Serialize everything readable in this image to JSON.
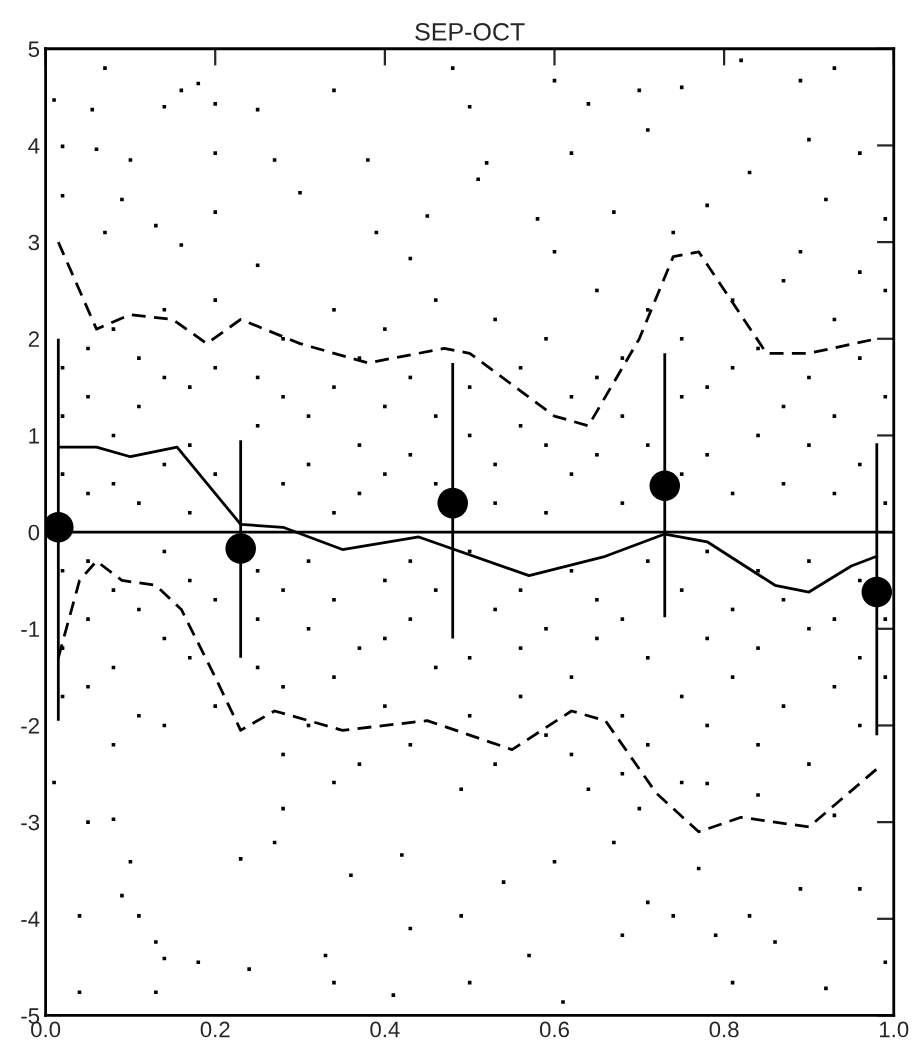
{
  "chart_data": {
    "type": "scatter",
    "title": "SEP-OCT",
    "xlim": [
      0,
      1
    ],
    "ylim": [
      -5,
      5
    ],
    "xticks": [
      {
        "value": 0,
        "label": "0.0"
      },
      {
        "value": 0.2,
        "label": "0.2"
      },
      {
        "value": 0.4,
        "label": "0.4"
      },
      {
        "value": 0.6,
        "label": "0.6"
      },
      {
        "value": 0.8,
        "label": "0.8"
      },
      {
        "value": 1,
        "label": "1.0"
      }
    ],
    "yticks": [
      -5,
      -4,
      -3,
      -2,
      -1,
      0,
      1,
      2,
      3,
      4,
      5
    ],
    "grid": false,
    "legend": false,
    "ref_lines": [
      {
        "axis": "y",
        "value": 0,
        "color": "#000000",
        "line_style": "solid"
      }
    ],
    "series": [
      {
        "type": "scatter",
        "marker": "square",
        "color": "#000000",
        "x": [
          0.01,
          0.055,
          0.07,
          0.14,
          0.16,
          0.18,
          0.2,
          0.25,
          0.34,
          0.48,
          0.5,
          0.6,
          0.64,
          0.7,
          0.75,
          0.82,
          0.89,
          0.93,
          0.9,
          0.02,
          0.06,
          0.1,
          0.2,
          0.27,
          0.38,
          0.52,
          0.62,
          0.71,
          0.83,
          0.96,
          0.02,
          0.09,
          0.13,
          0.2,
          0.3,
          0.45,
          0.51,
          0.58,
          0.67,
          0.78,
          0.92,
          0.99,
          0.07,
          0.16,
          0.25,
          0.39,
          0.43,
          0.6,
          0.74,
          0.89,
          0.96,
          0.02,
          0.02,
          0.02,
          0.02,
          0.02,
          0.02,
          0.05,
          0.05,
          0.05,
          0.05,
          0.05,
          0.05,
          0.08,
          0.08,
          0.08,
          0.08,
          0.08,
          0.08,
          0.11,
          0.11,
          0.11,
          0.11,
          0.11,
          0.14,
          0.14,
          0.14,
          0.14,
          0.14,
          0.14,
          0.17,
          0.17,
          0.17,
          0.17,
          0.17,
          0.2,
          0.2,
          0.2,
          0.2,
          0.2,
          0.25,
          0.25,
          0.25,
          0.25,
          0.25,
          0.28,
          0.28,
          0.28,
          0.28,
          0.28,
          0.28,
          0.31,
          0.31,
          0.31,
          0.31,
          0.31,
          0.34,
          0.34,
          0.34,
          0.34,
          0.34,
          0.37,
          0.37,
          0.37,
          0.37,
          0.37,
          0.4,
          0.4,
          0.4,
          0.4,
          0.4,
          0.4,
          0.43,
          0.43,
          0.43,
          0.43,
          0.43,
          0.46,
          0.46,
          0.46,
          0.46,
          0.46,
          0.5,
          0.5,
          0.5,
          0.5,
          0.5,
          0.53,
          0.53,
          0.53,
          0.53,
          0.53,
          0.56,
          0.56,
          0.56,
          0.56,
          0.56,
          0.59,
          0.59,
          0.59,
          0.59,
          0.59,
          0.62,
          0.62,
          0.62,
          0.62,
          0.62,
          0.65,
          0.65,
          0.65,
          0.65,
          0.65,
          0.68,
          0.68,
          0.68,
          0.68,
          0.68,
          0.68,
          0.71,
          0.71,
          0.71,
          0.71,
          0.71,
          0.75,
          0.75,
          0.75,
          0.75,
          0.75,
          0.78,
          0.78,
          0.78,
          0.78,
          0.78,
          0.78,
          0.81,
          0.81,
          0.81,
          0.81,
          0.81,
          0.84,
          0.84,
          0.84,
          0.84,
          0.84,
          0.87,
          0.87,
          0.87,
          0.87,
          0.87,
          0.9,
          0.9,
          0.9,
          0.9,
          0.9,
          0.93,
          0.93,
          0.93,
          0.93,
          0.93,
          0.96,
          0.96,
          0.96,
          0.96,
          0.96,
          0.99,
          0.99,
          0.99,
          0.99,
          0.99,
          0.01,
          0.05,
          0.08,
          0.1,
          0.09,
          0.04,
          0.11,
          0.13,
          0.14,
          0.18,
          0.04,
          0.13,
          0.24,
          0.23,
          0.27,
          0.28,
          0.34,
          0.36,
          0.33,
          0.34,
          0.41,
          0.42,
          0.43,
          0.49,
          0.5,
          0.49,
          0.54,
          0.57,
          0.6,
          0.61,
          0.64,
          0.67,
          0.68,
          0.7,
          0.71,
          0.74,
          0.77,
          0.79,
          0.81,
          0.83,
          0.86,
          0.89,
          0.92,
          0.96,
          0.99,
          0.93,
          0.84,
          0.75
        ],
        "values": [
          4.47,
          4.37,
          4.8,
          4.4,
          4.57,
          4.64,
          4.43,
          4.37,
          4.57,
          4.8,
          4.4,
          4.67,
          4.43,
          4.57,
          4.6,
          4.88,
          4.67,
          4.8,
          4.06,
          3.99,
          3.96,
          3.85,
          3.92,
          3.85,
          3.85,
          3.82,
          3.92,
          4.16,
          3.72,
          3.92,
          3.48,
          3.44,
          3.17,
          3.31,
          3.51,
          3.27,
          3.65,
          3.24,
          3.31,
          3.38,
          3.44,
          3.24,
          3.1,
          2.97,
          2.76,
          3.1,
          2.83,
          2.9,
          3.1,
          2.9,
          2.69,
          1.7,
          1.2,
          0.6,
          -0.4,
          -1.2,
          -1.7,
          1.9,
          1.4,
          0.4,
          -0.3,
          -0.9,
          -1.6,
          2.1,
          1.0,
          0.5,
          -0.6,
          -1.4,
          -2.2,
          1.8,
          1.3,
          0.3,
          -0.8,
          -1.9,
          2.3,
          1.6,
          0.7,
          -0.2,
          -1.1,
          -2.0,
          1.5,
          0.9,
          0.2,
          -0.5,
          -1.3,
          2.4,
          1.7,
          0.6,
          -0.7,
          -1.8,
          1.6,
          1.1,
          -0.4,
          -0.9,
          -1.4,
          2.0,
          1.4,
          0.5,
          -0.6,
          -1.6,
          -2.3,
          1.2,
          0.7,
          -0.3,
          -1.0,
          -2.0,
          2.3,
          1.5,
          0.2,
          -0.7,
          -1.5,
          1.8,
          0.9,
          0.4,
          -1.2,
          -2.4,
          2.1,
          1.3,
          0.6,
          -0.5,
          -1.1,
          -1.8,
          1.6,
          0.8,
          -0.3,
          -0.9,
          -2.2,
          2.4,
          1.2,
          0.5,
          -0.6,
          -1.4,
          1.5,
          1.0,
          -0.2,
          -1.3,
          -1.9,
          2.2,
          0.7,
          0.3,
          -0.8,
          -2.4,
          1.7,
          1.1,
          -0.6,
          -1.2,
          -1.7,
          2.0,
          0.9,
          0.2,
          -1.0,
          -2.1,
          1.4,
          0.6,
          -0.4,
          -1.5,
          -2.3,
          2.5,
          1.6,
          0.8,
          -0.7,
          -1.1,
          1.8,
          1.2,
          0.3,
          -0.9,
          -1.9,
          -2.5,
          2.3,
          0.9,
          -0.3,
          -1.3,
          -2.2,
          2.0,
          1.4,
          0.6,
          -0.6,
          -1.7,
          1.5,
          0.8,
          -0.2,
          -1.1,
          -2.0,
          -2.6,
          2.4,
          1.7,
          0.4,
          -0.8,
          -1.5,
          1.9,
          1.0,
          -0.4,
          -1.2,
          -2.2,
          2.6,
          1.3,
          0.5,
          -0.7,
          -1.8,
          1.6,
          0.9,
          -0.3,
          -1.0,
          -2.4,
          2.2,
          1.2,
          0.4,
          -0.9,
          -1.6,
          1.8,
          0.7,
          -0.5,
          -1.3,
          -2.0,
          2.5,
          1.4,
          0.3,
          -0.9,
          -1.5,
          -2.59,
          -3.0,
          -2.97,
          -3.41,
          -3.76,
          -3.97,
          -3.97,
          -4.24,
          -4.41,
          -4.45,
          -4.76,
          -4.76,
          -4.52,
          -3.38,
          -3.21,
          -2.86,
          -2.59,
          -3.55,
          -4.38,
          -4.66,
          -4.79,
          -3.34,
          -4.1,
          -3.97,
          -4.66,
          -2.66,
          -3.62,
          -4.38,
          -3.41,
          -4.86,
          -2.66,
          -3.21,
          -4.17,
          -2.86,
          -3.83,
          -3.97,
          -3.48,
          -4.17,
          -4.66,
          -3.97,
          -4.24,
          -3.69,
          -4.72,
          -3.69,
          -4.45,
          -2.93,
          -2.72,
          -2.59
        ]
      },
      {
        "type": "line",
        "color": "#000000",
        "line_style": "solid",
        "marker": "none",
        "x": [
          0.015,
          0.06,
          0.1,
          0.155,
          0.23,
          0.28,
          0.35,
          0.44,
          0.57,
          0.66,
          0.73,
          0.78,
          0.86,
          0.9,
          0.95,
          0.98
        ],
        "values": [
          0.88,
          0.88,
          0.78,
          0.88,
          0.08,
          0.05,
          -0.18,
          -0.05,
          -0.45,
          -0.25,
          -0.02,
          -0.1,
          -0.55,
          -0.62,
          -0.35,
          -0.25
        ]
      },
      {
        "type": "line",
        "color": "#000000",
        "line_style": "dashed",
        "marker": "none",
        "x": [
          0.015,
          0.06,
          0.1,
          0.15,
          0.19,
          0.23,
          0.3,
          0.38,
          0.47,
          0.5,
          0.6,
          0.64,
          0.7,
          0.74,
          0.77,
          0.85,
          0.9,
          0.98
        ],
        "values": [
          3.0,
          2.1,
          2.25,
          2.2,
          1.95,
          2.2,
          1.95,
          1.75,
          1.9,
          1.85,
          1.2,
          1.1,
          2.0,
          2.85,
          2.9,
          1.85,
          1.85,
          2.0
        ]
      },
      {
        "type": "line",
        "color": "#000000",
        "line_style": "dashed",
        "marker": "none",
        "x": [
          0.015,
          0.04,
          0.06,
          0.09,
          0.13,
          0.16,
          0.2,
          0.23,
          0.27,
          0.35,
          0.45,
          0.55,
          0.62,
          0.66,
          0.72,
          0.77,
          0.82,
          0.9,
          0.98
        ],
        "values": [
          -1.3,
          -0.5,
          -0.3,
          -0.5,
          -0.55,
          -0.8,
          -1.5,
          -2.05,
          -1.85,
          -2.05,
          -1.95,
          -2.25,
          -1.85,
          -1.95,
          -2.7,
          -3.1,
          -2.95,
          -3.05,
          -2.45
        ]
      },
      {
        "type": "scatter",
        "marker": "circle",
        "color": "#000000",
        "x": [
          0.015,
          0.23,
          0.48,
          0.73,
          0.98
        ],
        "values": [
          0.05,
          -0.17,
          0.3,
          0.48,
          -0.62
        ],
        "errors": [
          [
            -1.95,
            2.0
          ],
          [
            -1.3,
            0.95
          ],
          [
            -1.1,
            1.75
          ],
          [
            -0.88,
            1.85
          ],
          [
            -2.1,
            0.92
          ]
        ]
      }
    ]
  }
}
